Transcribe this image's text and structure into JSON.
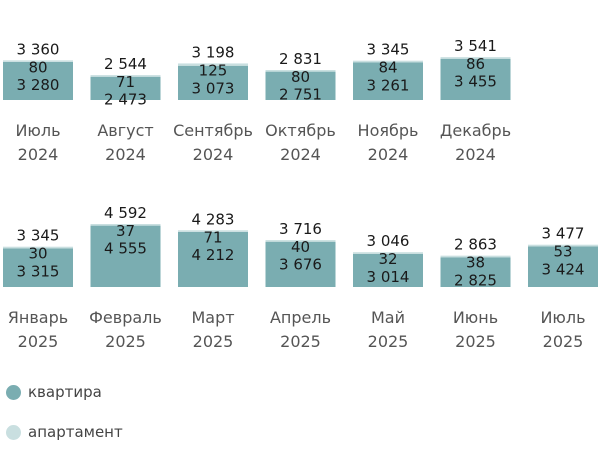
{
  "chart_data": {
    "type": "bar",
    "stacked": true,
    "title": "",
    "xlabel": "",
    "ylabel": "",
    "categories": [
      [
        "Июль",
        "2024"
      ],
      [
        "Август",
        "2024"
      ],
      [
        "Сентябрь",
        "2024"
      ],
      [
        "Октябрь",
        "2024"
      ],
      [
        "Ноябрь",
        "2024"
      ],
      [
        "Декабрь",
        "2024"
      ],
      [
        "Январь",
        "2025"
      ],
      [
        "Февраль",
        "2025"
      ],
      [
        "Март",
        "2025"
      ],
      [
        "Апрель",
        "2025"
      ],
      [
        "Май",
        "2025"
      ],
      [
        "Июнь",
        "2025"
      ],
      [
        "Июль",
        "2025"
      ]
    ],
    "series": [
      {
        "name": "квартира",
        "color": "#7aadb1",
        "values": [
          3280,
          2473,
          3073,
          2751,
          3261,
          3455,
          3315,
          4555,
          4212,
          3676,
          3014,
          2825,
          3424
        ]
      },
      {
        "name": "апартамент",
        "color": "#c9dfe0",
        "values": [
          80,
          71,
          125,
          80,
          84,
          86,
          30,
          37,
          71,
          40,
          32,
          38,
          53
        ]
      }
    ],
    "totals": [
      3360,
      2544,
      3198,
      2831,
      3345,
      3541,
      3345,
      4592,
      4283,
      3716,
      3046,
      2863,
      3477
    ],
    "value_labels": {
      "series0": [
        "3 280",
        "2 473",
        "3 073",
        "2 751",
        "3 261",
        "3 455",
        "3 315",
        "4 555",
        "4 212",
        "3 676",
        "3 014",
        "2 825",
        "3 424"
      ],
      "series1": [
        "80",
        "71",
        "125",
        "80",
        "84",
        "86",
        "30",
        "37",
        "71",
        "40",
        "32",
        "38",
        "53"
      ],
      "totals": [
        "3 360",
        "2 544",
        "3 198",
        "2 831",
        "3 345",
        "3 541",
        "3 345",
        "4 592",
        "4 283",
        "3 716",
        "3 046",
        "2 863",
        "3 477"
      ]
    },
    "legend": {
      "position": "bottom-left"
    },
    "grid": false,
    "layout": {
      "rows": 2,
      "per_row": [
        6,
        7
      ]
    }
  }
}
